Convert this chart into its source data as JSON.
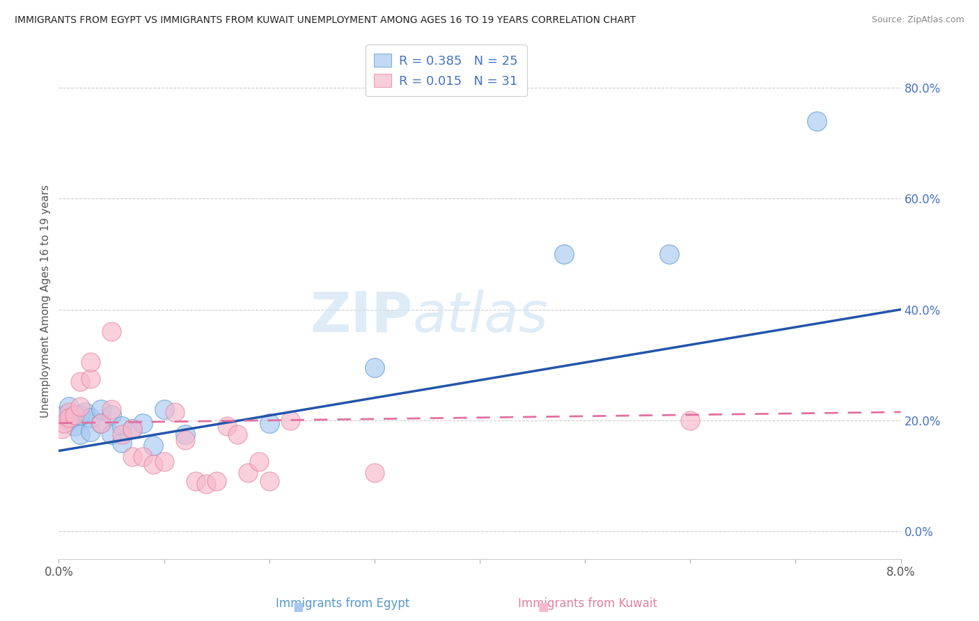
{
  "title": "IMMIGRANTS FROM EGYPT VS IMMIGRANTS FROM KUWAIT UNEMPLOYMENT AMONG AGES 16 TO 19 YEARS CORRELATION CHART",
  "source": "Source: ZipAtlas.com",
  "xlabel_egypt": "Immigrants from Egypt",
  "xlabel_kuwait": "Immigrants from Kuwait",
  "ylabel": "Unemployment Among Ages 16 to 19 years",
  "egypt_R": 0.385,
  "egypt_N": 25,
  "kuwait_R": 0.015,
  "kuwait_N": 31,
  "xlim": [
    0.0,
    0.08
  ],
  "ylim": [
    -0.05,
    0.88
  ],
  "yticks": [
    0.0,
    0.2,
    0.4,
    0.6,
    0.8
  ],
  "xticks": [
    0.0,
    0.08
  ],
  "egypt_color": "#a8c8f0",
  "kuwait_color": "#f9b8cb",
  "egypt_edge_color": "#5599cc",
  "kuwait_edge_color": "#e080a0",
  "egypt_line_color": "#2255aa",
  "kuwait_line_color": "#e070a0",
  "legend_text_color": "#4472c4",
  "right_axis_color": "#4472c4",
  "watermark_color": "#d0e4f4",
  "background_color": "#ffffff",
  "grid_color": "#cccccc",
  "egypt_x": [
    0.0005,
    0.001,
    0.001,
    0.0015,
    0.002,
    0.002,
    0.0025,
    0.003,
    0.003,
    0.004,
    0.004,
    0.005,
    0.005,
    0.006,
    0.006,
    0.007,
    0.008,
    0.009,
    0.01,
    0.012,
    0.02,
    0.03,
    0.048,
    0.058,
    0.072
  ],
  "egypt_y": [
    0.21,
    0.2,
    0.225,
    0.19,
    0.21,
    0.175,
    0.215,
    0.205,
    0.18,
    0.195,
    0.22,
    0.175,
    0.21,
    0.19,
    0.16,
    0.185,
    0.195,
    0.155,
    0.22,
    0.175,
    0.195,
    0.295,
    0.5,
    0.5,
    0.74
  ],
  "kuwait_x": [
    0.0003,
    0.0005,
    0.001,
    0.001,
    0.0015,
    0.002,
    0.002,
    0.003,
    0.003,
    0.004,
    0.005,
    0.005,
    0.006,
    0.007,
    0.007,
    0.008,
    0.009,
    0.01,
    0.011,
    0.012,
    0.013,
    0.014,
    0.015,
    0.016,
    0.017,
    0.018,
    0.019,
    0.02,
    0.022,
    0.03,
    0.06
  ],
  "kuwait_y": [
    0.185,
    0.195,
    0.215,
    0.205,
    0.21,
    0.225,
    0.27,
    0.275,
    0.305,
    0.195,
    0.22,
    0.36,
    0.175,
    0.135,
    0.185,
    0.135,
    0.12,
    0.125,
    0.215,
    0.165,
    0.09,
    0.085,
    0.09,
    0.19,
    0.175,
    0.105,
    0.125,
    0.09,
    0.2,
    0.105,
    0.2
  ],
  "egypt_trend_x": [
    0.0,
    0.08
  ],
  "egypt_trend_y": [
    0.145,
    0.4
  ],
  "kuwait_trend_x": [
    0.0,
    0.08
  ],
  "kuwait_trend_y": [
    0.195,
    0.215
  ],
  "watermark": "ZIPatlas"
}
